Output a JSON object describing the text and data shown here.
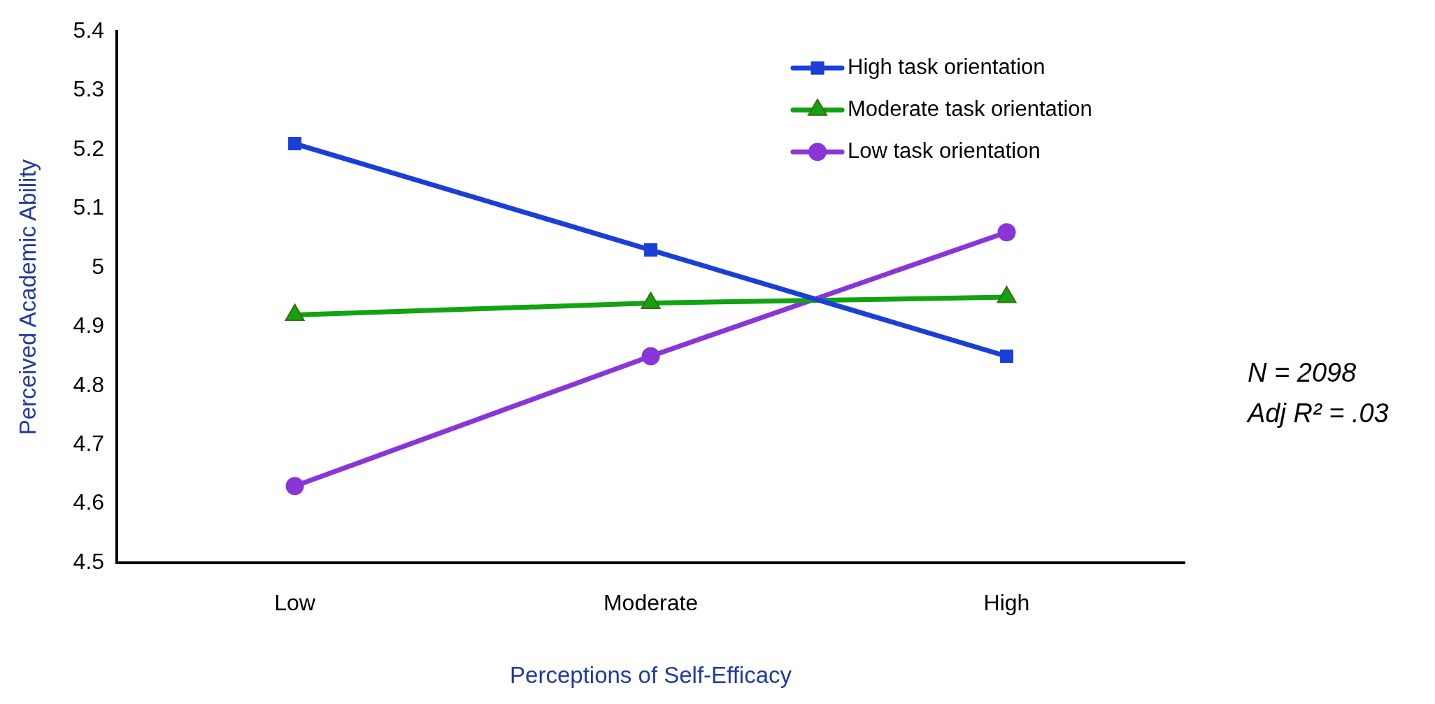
{
  "chart_data": {
    "type": "line",
    "xlabel": "Perceptions of Self-Efficacy",
    "ylabel": "Perceived Academic Ability",
    "categories": [
      "Low",
      "Moderate",
      "High"
    ],
    "series": [
      {
        "name": "High task orientation",
        "color": "#1a3fd9",
        "marker": "square",
        "values": [
          5.21,
          5.03,
          4.85
        ]
      },
      {
        "name": "Moderate task orientation",
        "color": "#12a312",
        "marker": "triangle",
        "values": [
          4.92,
          4.94,
          4.95
        ]
      },
      {
        "name": "Low task orientation",
        "color": "#8a35d8",
        "marker": "circle",
        "values": [
          4.63,
          4.85,
          5.06
        ]
      }
    ],
    "ylim": [
      4.5,
      5.4
    ],
    "yticks": [
      4.5,
      4.6,
      4.7,
      4.8,
      4.9,
      5,
      5.1,
      5.2,
      5.3,
      5.4
    ],
    "grid": false,
    "legend": "top right",
    "line_style": "solid",
    "annotations": [
      "N = 2098",
      "Adj R² = .03"
    ]
  }
}
